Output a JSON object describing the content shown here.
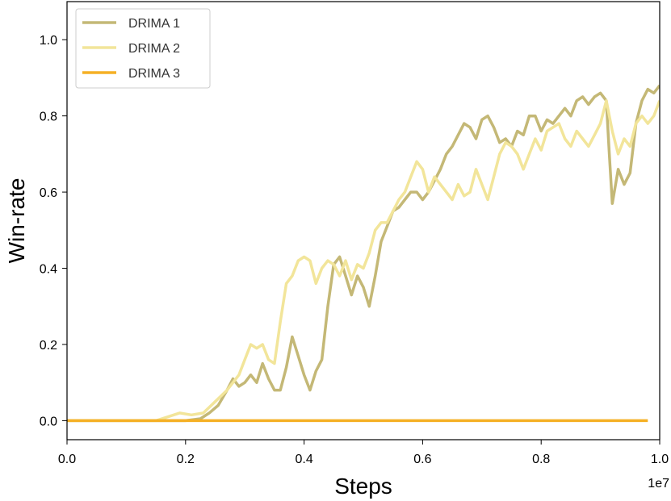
{
  "chart_data": {
    "type": "line",
    "title": "",
    "xlabel": "Steps",
    "ylabel": "Win-rate",
    "x_offset_label": "1e7",
    "xlim": [
      0.0,
      1.0
    ],
    "ylim": [
      -0.05,
      1.1
    ],
    "xticks": [
      "0.0",
      "0.2",
      "0.4",
      "0.6",
      "0.8",
      "1.0"
    ],
    "yticks": [
      "0.0",
      "0.2",
      "0.4",
      "0.6",
      "0.8",
      "1.0"
    ],
    "grid": false,
    "legend_position": "top-left",
    "series": [
      {
        "name": "DRIMA 1",
        "color": "#c4b876",
        "points": [
          [
            0.0,
            0.0
          ],
          [
            0.15,
            0.0
          ],
          [
            0.2,
            0.0
          ],
          [
            0.225,
            0.005
          ],
          [
            0.24,
            0.02
          ],
          [
            0.255,
            0.04
          ],
          [
            0.27,
            0.08
          ],
          [
            0.28,
            0.11
          ],
          [
            0.29,
            0.09
          ],
          [
            0.3,
            0.1
          ],
          [
            0.31,
            0.12
          ],
          [
            0.32,
            0.1
          ],
          [
            0.33,
            0.15
          ],
          [
            0.34,
            0.11
          ],
          [
            0.35,
            0.08
          ],
          [
            0.36,
            0.08
          ],
          [
            0.37,
            0.14
          ],
          [
            0.38,
            0.22
          ],
          [
            0.39,
            0.17
          ],
          [
            0.4,
            0.12
          ],
          [
            0.41,
            0.08
          ],
          [
            0.42,
            0.13
          ],
          [
            0.43,
            0.16
          ],
          [
            0.44,
            0.3
          ],
          [
            0.45,
            0.41
          ],
          [
            0.46,
            0.43
          ],
          [
            0.47,
            0.38
          ],
          [
            0.48,
            0.33
          ],
          [
            0.49,
            0.38
          ],
          [
            0.5,
            0.35
          ],
          [
            0.51,
            0.3
          ],
          [
            0.52,
            0.38
          ],
          [
            0.53,
            0.47
          ],
          [
            0.54,
            0.51
          ],
          [
            0.55,
            0.55
          ],
          [
            0.56,
            0.56
          ],
          [
            0.57,
            0.58
          ],
          [
            0.58,
            0.6
          ],
          [
            0.59,
            0.6
          ],
          [
            0.6,
            0.58
          ],
          [
            0.61,
            0.6
          ],
          [
            0.62,
            0.63
          ],
          [
            0.63,
            0.66
          ],
          [
            0.64,
            0.7
          ],
          [
            0.65,
            0.72
          ],
          [
            0.66,
            0.75
          ],
          [
            0.67,
            0.78
          ],
          [
            0.68,
            0.77
          ],
          [
            0.69,
            0.74
          ],
          [
            0.7,
            0.79
          ],
          [
            0.71,
            0.8
          ],
          [
            0.72,
            0.77
          ],
          [
            0.73,
            0.73
          ],
          [
            0.74,
            0.74
          ],
          [
            0.75,
            0.72
          ],
          [
            0.76,
            0.76
          ],
          [
            0.77,
            0.75
          ],
          [
            0.78,
            0.8
          ],
          [
            0.79,
            0.8
          ],
          [
            0.8,
            0.76
          ],
          [
            0.81,
            0.79
          ],
          [
            0.82,
            0.78
          ],
          [
            0.83,
            0.8
          ],
          [
            0.84,
            0.82
          ],
          [
            0.85,
            0.8
          ],
          [
            0.86,
            0.84
          ],
          [
            0.87,
            0.85
          ],
          [
            0.88,
            0.83
          ],
          [
            0.89,
            0.85
          ],
          [
            0.9,
            0.86
          ],
          [
            0.91,
            0.84
          ],
          [
            0.915,
            0.7
          ],
          [
            0.92,
            0.57
          ],
          [
            0.93,
            0.66
          ],
          [
            0.94,
            0.62
          ],
          [
            0.95,
            0.65
          ],
          [
            0.96,
            0.78
          ],
          [
            0.97,
            0.84
          ],
          [
            0.98,
            0.87
          ],
          [
            0.99,
            0.86
          ],
          [
            1.0,
            0.88
          ]
        ]
      },
      {
        "name": "DRIMA 2",
        "color": "#f2e59a",
        "points": [
          [
            0.0,
            0.0
          ],
          [
            0.15,
            0.0
          ],
          [
            0.17,
            0.01
          ],
          [
            0.19,
            0.02
          ],
          [
            0.21,
            0.015
          ],
          [
            0.23,
            0.02
          ],
          [
            0.25,
            0.05
          ],
          [
            0.27,
            0.08
          ],
          [
            0.28,
            0.1
          ],
          [
            0.29,
            0.12
          ],
          [
            0.3,
            0.16
          ],
          [
            0.31,
            0.2
          ],
          [
            0.32,
            0.19
          ],
          [
            0.33,
            0.2
          ],
          [
            0.34,
            0.16
          ],
          [
            0.35,
            0.15
          ],
          [
            0.36,
            0.26
          ],
          [
            0.37,
            0.36
          ],
          [
            0.38,
            0.38
          ],
          [
            0.39,
            0.42
          ],
          [
            0.4,
            0.43
          ],
          [
            0.41,
            0.42
          ],
          [
            0.42,
            0.36
          ],
          [
            0.43,
            0.4
          ],
          [
            0.44,
            0.42
          ],
          [
            0.45,
            0.41
          ],
          [
            0.46,
            0.38
          ],
          [
            0.47,
            0.42
          ],
          [
            0.48,
            0.37
          ],
          [
            0.49,
            0.41
          ],
          [
            0.5,
            0.4
          ],
          [
            0.51,
            0.44
          ],
          [
            0.52,
            0.5
          ],
          [
            0.53,
            0.52
          ],
          [
            0.54,
            0.52
          ],
          [
            0.55,
            0.55
          ],
          [
            0.56,
            0.58
          ],
          [
            0.57,
            0.6
          ],
          [
            0.58,
            0.64
          ],
          [
            0.59,
            0.68
          ],
          [
            0.6,
            0.66
          ],
          [
            0.61,
            0.6
          ],
          [
            0.62,
            0.64
          ],
          [
            0.63,
            0.62
          ],
          [
            0.64,
            0.6
          ],
          [
            0.65,
            0.58
          ],
          [
            0.66,
            0.62
          ],
          [
            0.67,
            0.59
          ],
          [
            0.68,
            0.6
          ],
          [
            0.69,
            0.66
          ],
          [
            0.7,
            0.62
          ],
          [
            0.71,
            0.58
          ],
          [
            0.72,
            0.64
          ],
          [
            0.73,
            0.7
          ],
          [
            0.74,
            0.73
          ],
          [
            0.75,
            0.72
          ],
          [
            0.76,
            0.7
          ],
          [
            0.77,
            0.66
          ],
          [
            0.78,
            0.7
          ],
          [
            0.79,
            0.74
          ],
          [
            0.8,
            0.71
          ],
          [
            0.81,
            0.76
          ],
          [
            0.82,
            0.77
          ],
          [
            0.83,
            0.78
          ],
          [
            0.84,
            0.74
          ],
          [
            0.85,
            0.72
          ],
          [
            0.86,
            0.76
          ],
          [
            0.87,
            0.74
          ],
          [
            0.88,
            0.72
          ],
          [
            0.89,
            0.75
          ],
          [
            0.9,
            0.78
          ],
          [
            0.91,
            0.84
          ],
          [
            0.92,
            0.76
          ],
          [
            0.93,
            0.7
          ],
          [
            0.94,
            0.74
          ],
          [
            0.95,
            0.72
          ],
          [
            0.96,
            0.78
          ],
          [
            0.97,
            0.8
          ],
          [
            0.98,
            0.78
          ],
          [
            0.99,
            0.8
          ],
          [
            1.0,
            0.84
          ]
        ]
      },
      {
        "name": "DRIMA 3",
        "color": "#f5b025",
        "points": [
          [
            0.0,
            0.0
          ],
          [
            0.98,
            0.0
          ]
        ]
      }
    ]
  }
}
